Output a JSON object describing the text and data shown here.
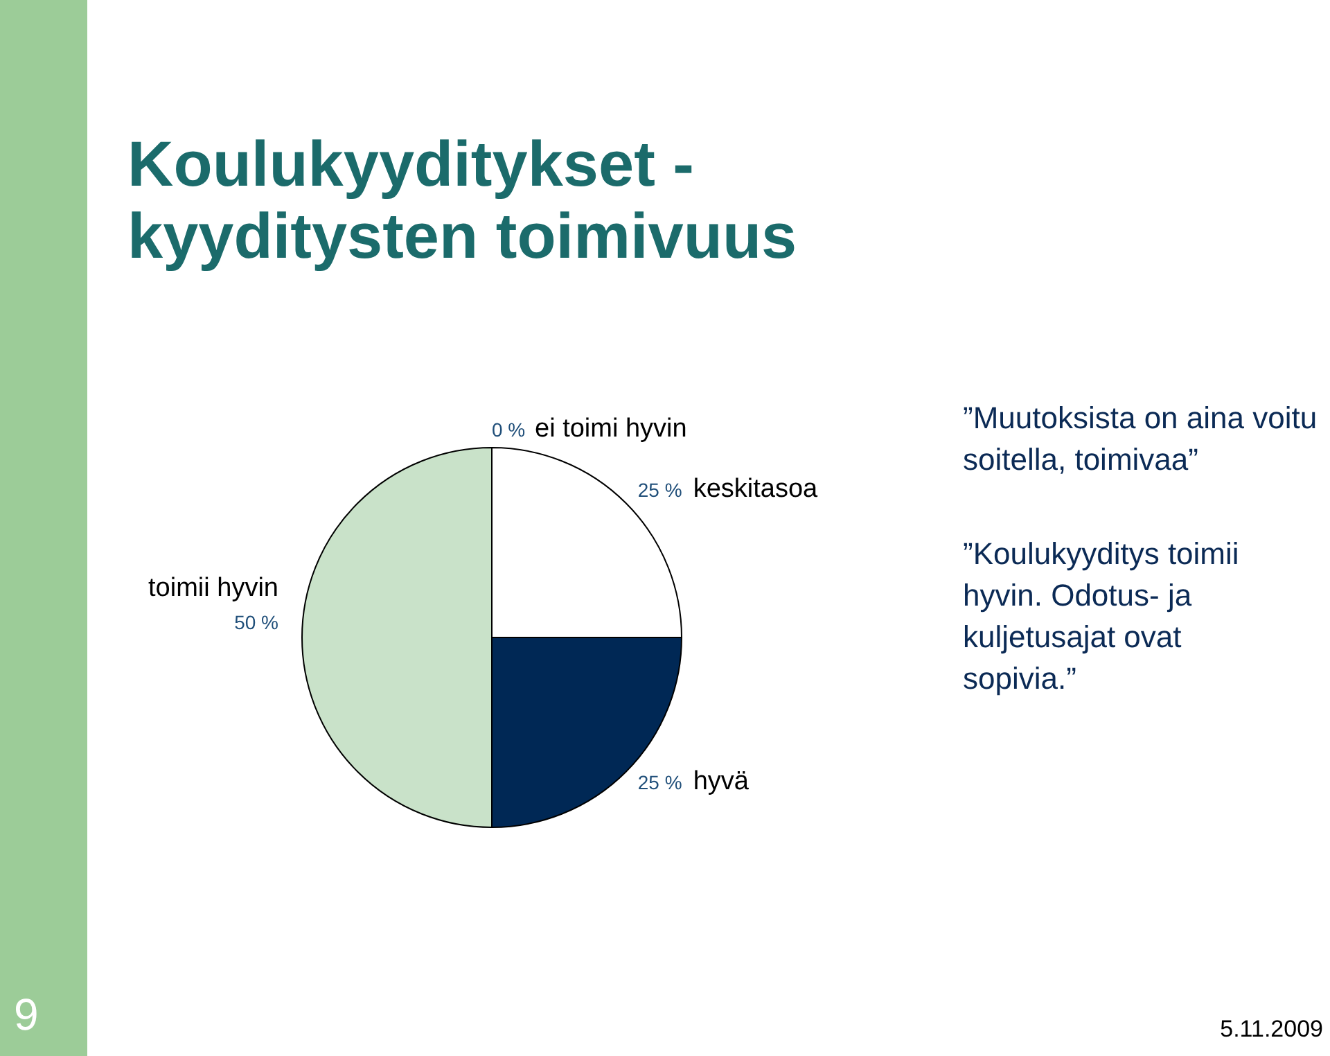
{
  "chart_data": {
    "type": "pie",
    "title": "Koulukyyditykset - kyyditysten toimivuus",
    "categories": [
      "ei toimi hyvin",
      "keskitasoa",
      "hyvä",
      "toimii hyvin"
    ],
    "values": [
      0,
      25,
      25,
      50
    ],
    "colors": [
      "#ffffff",
      "#ffffff",
      "#002855",
      "#c9e2c9"
    ],
    "value_labels": [
      "0 %",
      "25 %",
      "25 %",
      "50 %"
    ],
    "annotations": [
      "”Muutoksista on aina voitu soitella, toimivaa”",
      "”Koulukyyditys toimii hyvin. Odotus- ja kuljetusajat ovat sopivia.”",
      "9",
      "5.11.2009"
    ]
  }
}
